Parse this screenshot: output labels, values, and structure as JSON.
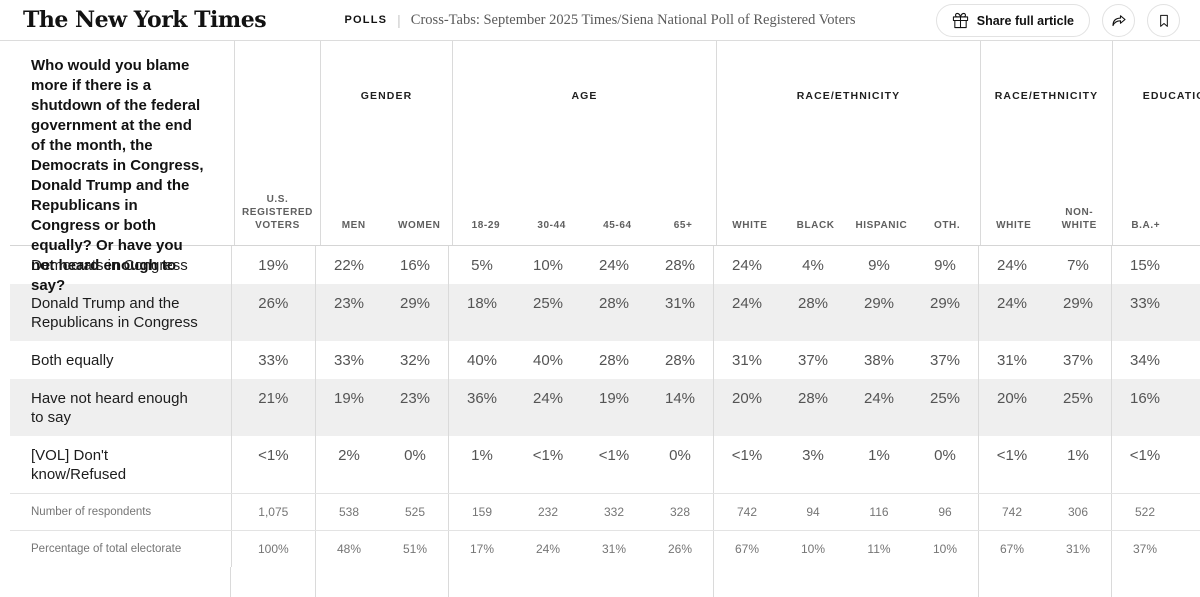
{
  "header": {
    "logo": "The New York Times",
    "section": "POLLS",
    "title": "Cross-Tabs: September 2025 Times/Siena National Poll of Registered Voters",
    "share_button": "Share full article",
    "icons": [
      "gift-icon",
      "share-icon",
      "bookmark-icon"
    ]
  },
  "colors": {
    "shaded_row": "#efefef",
    "grid_line": "#dadada",
    "text_primary": "#121212",
    "text_value": "#545454",
    "text_muted": "#757575",
    "button_border": "#e2e2e2"
  },
  "table": {
    "question": "Who would you blame more if there is a shutdown of the federal government at the end of the month, the Democrats in Congress, Donald Trump and the Republicans in Congress or both equally? Or have you not heard enough to say?",
    "base_column": "U.S. REGISTERED VOTERS",
    "groups": [
      {
        "label": "GENDER",
        "columns": [
          "MEN",
          "WOMEN"
        ],
        "clipped": false
      },
      {
        "label": "AGE",
        "columns": [
          "18-29",
          "30-44",
          "45-64",
          "65+"
        ],
        "clipped": false
      },
      {
        "label": "RACE/ETHNICITY",
        "columns": [
          "WHITE",
          "BLACK",
          "HISPANIC",
          "OTH."
        ],
        "clipped": false
      },
      {
        "label": "RACE/ETHNICITY",
        "columns": [
          "WHITE",
          "NON-WHITE"
        ],
        "clipped": false
      },
      {
        "label": "EDUCATION",
        "columns": [
          "B.A.+"
        ],
        "clipped": true
      }
    ],
    "rows": [
      {
        "label": "Democrats in Congress",
        "shaded": false,
        "values": [
          "19%",
          "22%",
          "16%",
          "5%",
          "10%",
          "24%",
          "28%",
          "24%",
          "4%",
          "9%",
          "9%",
          "24%",
          "7%",
          "15%"
        ]
      },
      {
        "label": "Donald Trump and the Republicans in Congress",
        "shaded": true,
        "values": [
          "26%",
          "23%",
          "29%",
          "18%",
          "25%",
          "28%",
          "31%",
          "24%",
          "28%",
          "29%",
          "29%",
          "24%",
          "29%",
          "33%"
        ]
      },
      {
        "label": "Both equally",
        "shaded": false,
        "values": [
          "33%",
          "33%",
          "32%",
          "40%",
          "40%",
          "28%",
          "28%",
          "31%",
          "37%",
          "38%",
          "37%",
          "31%",
          "37%",
          "34%"
        ]
      },
      {
        "label": "Have not heard enough to say",
        "shaded": true,
        "values": [
          "21%",
          "19%",
          "23%",
          "36%",
          "24%",
          "19%",
          "14%",
          "20%",
          "28%",
          "24%",
          "25%",
          "20%",
          "25%",
          "16%"
        ]
      },
      {
        "label": "[VOL] Don't know/Refused",
        "shaded": false,
        "values": [
          "<1%",
          "2%",
          "0%",
          "1%",
          "<1%",
          "<1%",
          "0%",
          "<1%",
          "3%",
          "1%",
          "0%",
          "<1%",
          "1%",
          "<1%"
        ]
      }
    ],
    "meta_rows": [
      {
        "label": "Number of respondents",
        "values": [
          "1,075",
          "538",
          "525",
          "159",
          "232",
          "332",
          "328",
          "742",
          "94",
          "116",
          "96",
          "742",
          "306",
          "522"
        ]
      },
      {
        "label": "Percentage of total electorate",
        "values": [
          "100%",
          "48%",
          "51%",
          "17%",
          "24%",
          "31%",
          "26%",
          "67%",
          "10%",
          "11%",
          "10%",
          "67%",
          "31%",
          "37%"
        ]
      }
    ]
  }
}
